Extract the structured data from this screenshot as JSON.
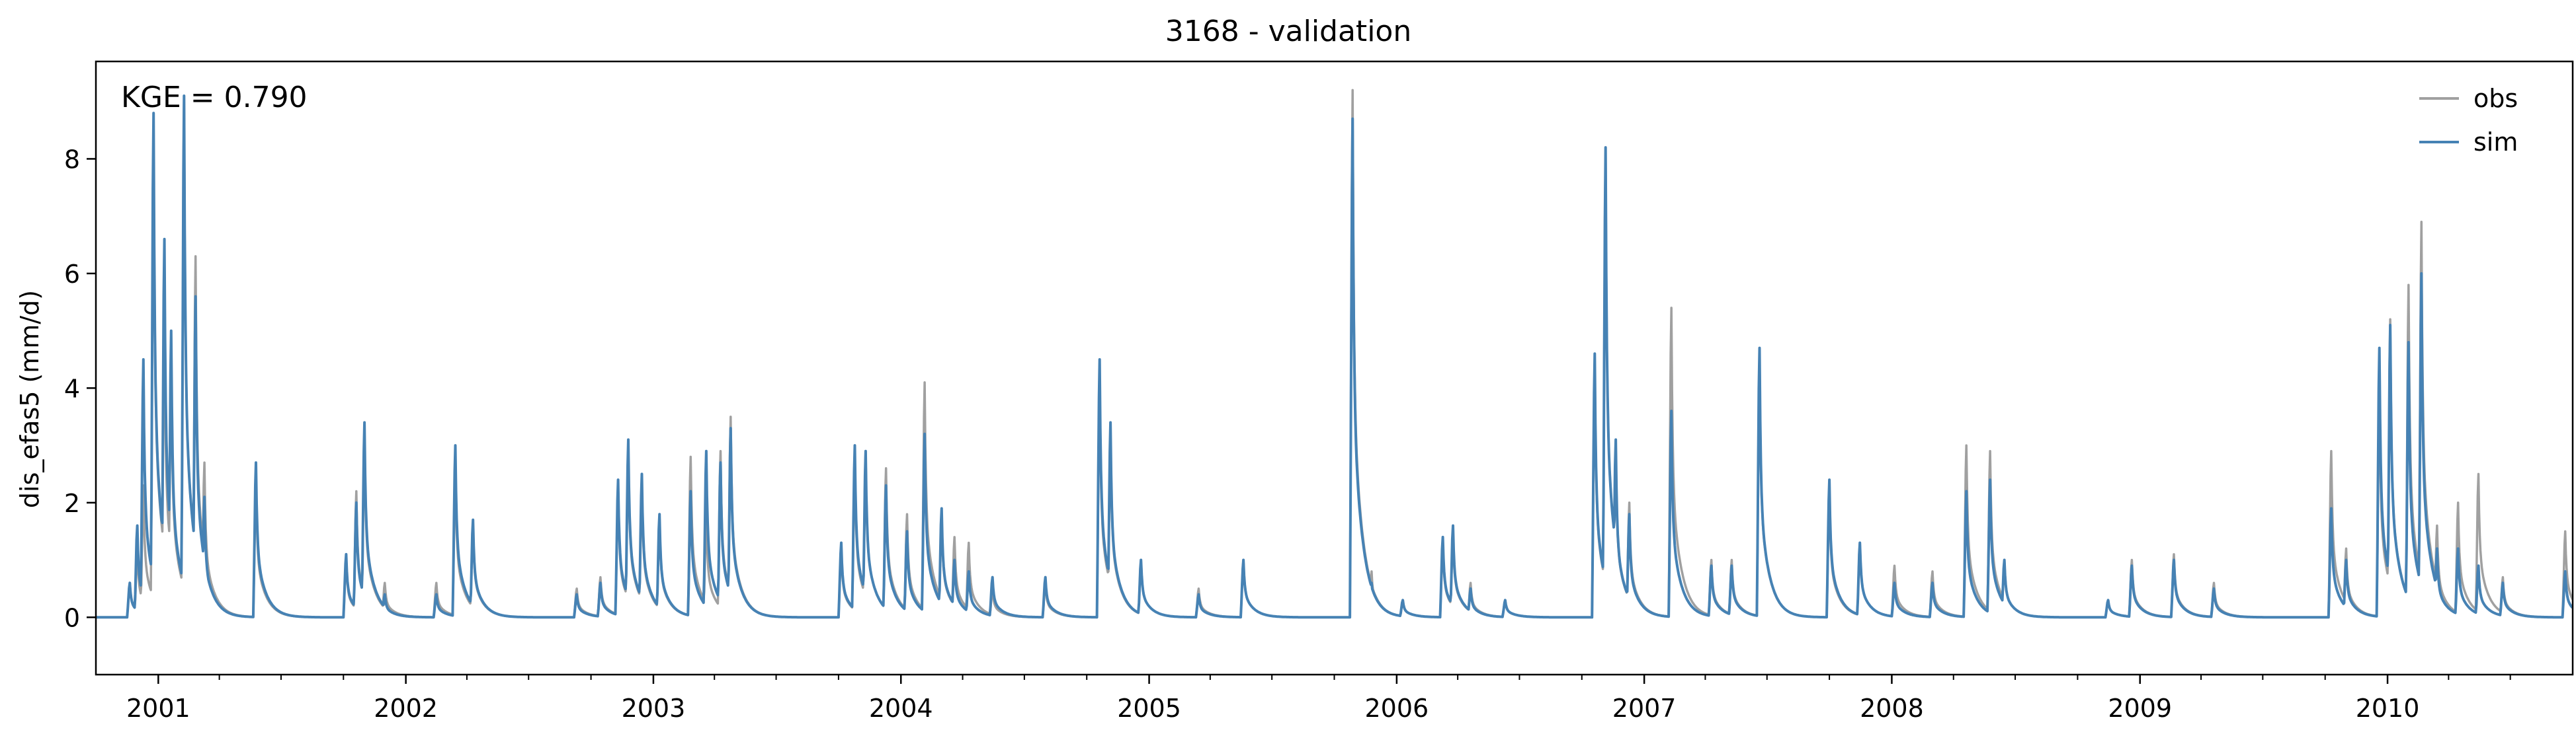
{
  "chart_data": {
    "type": "line",
    "title": "3168 - validation",
    "xlabel": "",
    "ylabel": "dis_efas5 (mm/d)",
    "annotation": "KGE = 0.790",
    "xlim": [
      "2000-10-01",
      "2010-10-01"
    ],
    "ylim": [
      -1.0,
      9.7
    ],
    "y_ticks": [
      0,
      2,
      4,
      6,
      8
    ],
    "x_ticks": [
      {
        "label": "2001",
        "date": "2001-01-01"
      },
      {
        "label": "2002",
        "date": "2002-01-01"
      },
      {
        "label": "2003",
        "date": "2003-01-01"
      },
      {
        "label": "2004",
        "date": "2004-01-01"
      },
      {
        "label": "2005",
        "date": "2005-01-01"
      },
      {
        "label": "2006",
        "date": "2006-01-01"
      },
      {
        "label": "2007",
        "date": "2007-01-01"
      },
      {
        "label": "2008",
        "date": "2008-01-01"
      },
      {
        "label": "2009",
        "date": "2009-01-01"
      },
      {
        "label": "2010",
        "date": "2010-01-01"
      }
    ],
    "grid": false,
    "legend_position": "top-right",
    "colors": {
      "obs": "#a0a0a0",
      "sim": "#4682b4"
    },
    "baseflow": 0.0,
    "series": [
      {
        "name": "obs",
        "events": [
          [
            "2000-11-20",
            0.6
          ],
          [
            "2000-12-01",
            1.2
          ],
          [
            "2000-12-10",
            2.3
          ],
          [
            "2000-12-25",
            8.4
          ],
          [
            "2001-01-10",
            5.3
          ],
          [
            "2001-01-20",
            4.5
          ],
          [
            "2001-02-08",
            9.1
          ],
          [
            "2001-02-25",
            6.3
          ],
          [
            "2001-03-10",
            2.7
          ],
          [
            "2001-05-25",
            2.4
          ],
          [
            "2001-10-05",
            1.0
          ],
          [
            "2001-10-20",
            2.2
          ],
          [
            "2001-11-01",
            3.1
          ],
          [
            "2001-12-01",
            0.6
          ],
          [
            "2002-02-15",
            0.6
          ],
          [
            "2002-03-15",
            2.6
          ],
          [
            "2002-04-10",
            1.6
          ],
          [
            "2002-09-10",
            0.5
          ],
          [
            "2002-10-15",
            0.7
          ],
          [
            "2002-11-10",
            2.2
          ],
          [
            "2002-11-25",
            2.9
          ],
          [
            "2002-12-15",
            2.3
          ],
          [
            "2003-01-10",
            1.7
          ],
          [
            "2003-02-25",
            2.8
          ],
          [
            "2003-03-20",
            1.8
          ],
          [
            "2003-04-10",
            2.9
          ],
          [
            "2003-04-25",
            3.5
          ],
          [
            "2003-10-05",
            1.2
          ],
          [
            "2003-10-25",
            2.7
          ],
          [
            "2003-11-10",
            2.9
          ],
          [
            "2003-12-10",
            2.6
          ],
          [
            "2004-01-10",
            1.8
          ],
          [
            "2004-02-05",
            4.1
          ],
          [
            "2004-03-01",
            1.8
          ],
          [
            "2004-03-20",
            1.4
          ],
          [
            "2004-04-10",
            1.3
          ],
          [
            "2004-05-15",
            0.5
          ],
          [
            "2004-08-01",
            0.6
          ],
          [
            "2004-10-20",
            4.1
          ],
          [
            "2004-11-05",
            3.2
          ],
          [
            "2004-12-20",
            1.0
          ],
          [
            "2005-03-15",
            0.5
          ],
          [
            "2005-05-20",
            1.0
          ],
          [
            "2005-10-28",
            9.2
          ],
          [
            "2005-11-25",
            0.8
          ],
          [
            "2006-01-10",
            0.3
          ],
          [
            "2006-03-10",
            1.3
          ],
          [
            "2006-03-25",
            1.5
          ],
          [
            "2006-04-20",
            0.6
          ],
          [
            "2006-06-10",
            0.3
          ],
          [
            "2006-10-20",
            4.4
          ],
          [
            "2006-11-05",
            8.2
          ],
          [
            "2006-11-20",
            3.0
          ],
          [
            "2006-12-10",
            2.0
          ],
          [
            "2007-02-10",
            5.4
          ],
          [
            "2007-04-10",
            1.0
          ],
          [
            "2007-05-10",
            1.0
          ],
          [
            "2007-06-20",
            4.6
          ],
          [
            "2007-10-01",
            2.2
          ],
          [
            "2007-11-15",
            1.3
          ],
          [
            "2008-01-05",
            0.9
          ],
          [
            "2008-03-01",
            0.8
          ],
          [
            "2008-04-20",
            3.0
          ],
          [
            "2008-05-25",
            2.9
          ],
          [
            "2008-06-15",
            1.0
          ],
          [
            "2008-11-15",
            0.3
          ],
          [
            "2008-12-20",
            1.0
          ],
          [
            "2009-02-20",
            1.1
          ],
          [
            "2009-04-20",
            0.6
          ],
          [
            "2009-10-10",
            2.9
          ],
          [
            "2009-11-01",
            1.2
          ],
          [
            "2009-12-20",
            4.0
          ],
          [
            "2010-01-05",
            5.2
          ],
          [
            "2010-02-01",
            5.8
          ],
          [
            "2010-02-20",
            6.9
          ],
          [
            "2010-03-15",
            1.6
          ],
          [
            "2010-04-15",
            2.0
          ],
          [
            "2010-05-15",
            2.5
          ],
          [
            "2010-06-20",
            0.7
          ],
          [
            "2010-09-20",
            1.5
          ]
        ]
      },
      {
        "name": "sim",
        "events": [
          [
            "2000-11-20",
            0.6
          ],
          [
            "2000-12-01",
            1.6
          ],
          [
            "2000-12-10",
            4.5
          ],
          [
            "2000-12-25",
            8.8
          ],
          [
            "2001-01-10",
            6.6
          ],
          [
            "2001-01-20",
            5.0
          ],
          [
            "2001-02-08",
            9.1
          ],
          [
            "2001-02-25",
            5.6
          ],
          [
            "2001-03-10",
            2.1
          ],
          [
            "2001-05-25",
            2.7
          ],
          [
            "2001-10-05",
            1.1
          ],
          [
            "2001-10-20",
            2.0
          ],
          [
            "2001-11-01",
            3.4
          ],
          [
            "2001-12-01",
            0.4
          ],
          [
            "2002-02-15",
            0.4
          ],
          [
            "2002-03-15",
            3.0
          ],
          [
            "2002-04-10",
            1.7
          ],
          [
            "2002-09-10",
            0.4
          ],
          [
            "2002-10-15",
            0.6
          ],
          [
            "2002-11-10",
            2.4
          ],
          [
            "2002-11-25",
            3.1
          ],
          [
            "2002-12-15",
            2.5
          ],
          [
            "2003-01-10",
            1.8
          ],
          [
            "2003-02-25",
            2.2
          ],
          [
            "2003-03-20",
            2.9
          ],
          [
            "2003-04-10",
            2.7
          ],
          [
            "2003-04-25",
            3.3
          ],
          [
            "2003-10-05",
            1.3
          ],
          [
            "2003-10-25",
            3.0
          ],
          [
            "2003-11-10",
            2.9
          ],
          [
            "2003-12-10",
            2.3
          ],
          [
            "2004-01-10",
            1.5
          ],
          [
            "2004-02-05",
            3.2
          ],
          [
            "2004-03-01",
            1.9
          ],
          [
            "2004-03-20",
            1.0
          ],
          [
            "2004-04-10",
            0.8
          ],
          [
            "2004-05-15",
            0.7
          ],
          [
            "2004-08-01",
            0.7
          ],
          [
            "2004-10-20",
            4.5
          ],
          [
            "2004-11-05",
            3.4
          ],
          [
            "2004-12-20",
            1.0
          ],
          [
            "2005-03-15",
            0.4
          ],
          [
            "2005-05-20",
            1.0
          ],
          [
            "2005-10-28",
            8.7
          ],
          [
            "2005-11-25",
            0.6
          ],
          [
            "2006-01-10",
            0.3
          ],
          [
            "2006-03-10",
            1.4
          ],
          [
            "2006-03-25",
            1.6
          ],
          [
            "2006-04-20",
            0.5
          ],
          [
            "2006-06-10",
            0.3
          ],
          [
            "2006-10-20",
            4.6
          ],
          [
            "2006-11-05",
            8.2
          ],
          [
            "2006-11-20",
            3.1
          ],
          [
            "2006-12-10",
            1.8
          ],
          [
            "2007-02-10",
            3.6
          ],
          [
            "2007-04-10",
            0.9
          ],
          [
            "2007-05-10",
            0.9
          ],
          [
            "2007-06-20",
            4.7
          ],
          [
            "2007-10-01",
            2.4
          ],
          [
            "2007-11-15",
            1.3
          ],
          [
            "2008-01-05",
            0.6
          ],
          [
            "2008-03-01",
            0.6
          ],
          [
            "2008-04-20",
            2.2
          ],
          [
            "2008-05-25",
            2.4
          ],
          [
            "2008-06-15",
            1.0
          ],
          [
            "2008-11-15",
            0.3
          ],
          [
            "2008-12-20",
            0.9
          ],
          [
            "2009-02-20",
            1.0
          ],
          [
            "2009-04-20",
            0.5
          ],
          [
            "2009-10-10",
            1.9
          ],
          [
            "2009-11-01",
            1.0
          ],
          [
            "2009-12-20",
            4.7
          ],
          [
            "2010-01-05",
            5.1
          ],
          [
            "2010-02-01",
            4.8
          ],
          [
            "2010-02-20",
            6.0
          ],
          [
            "2010-03-15",
            1.2
          ],
          [
            "2010-04-15",
            1.2
          ],
          [
            "2010-05-15",
            0.9
          ],
          [
            "2010-06-20",
            0.6
          ],
          [
            "2010-09-20",
            0.8
          ]
        ]
      }
    ]
  }
}
